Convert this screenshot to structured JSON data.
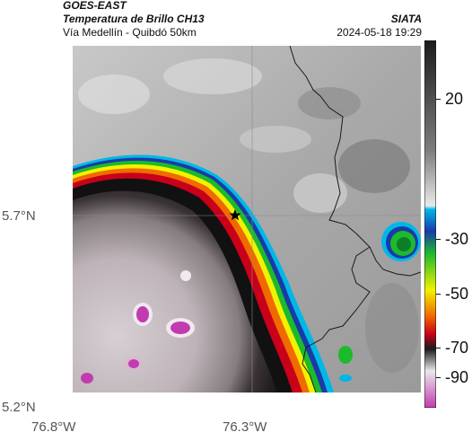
{
  "header": {
    "line1": "GOES-EAST",
    "line2": "Temperatura de Brillo CH13",
    "organization": "SIATA",
    "subtitle": "Vía Medellín - Quibdó 50km",
    "datetime": "2024-05-18 19:29"
  },
  "map": {
    "lat_labels": [
      "5.7°N",
      "5.2°N"
    ],
    "lon_labels": [
      "76.8°W",
      "76.3°W"
    ],
    "marker": "star-marker"
  },
  "colorbar": {
    "ticks": [
      "20",
      "-30",
      "-50",
      "-70",
      "-90"
    ],
    "colors": {
      "warm": "#e9e9e9",
      "mid": "#7d7d7d",
      "dark": "#1c1c1c",
      "cyan": "#00b8e6",
      "blue": "#1a3aa8",
      "green": "#1cba2c",
      "yellow": "#f2f200",
      "orange": "#f06a00",
      "red": "#c8001a",
      "magenta": "#c23bb0"
    }
  }
}
